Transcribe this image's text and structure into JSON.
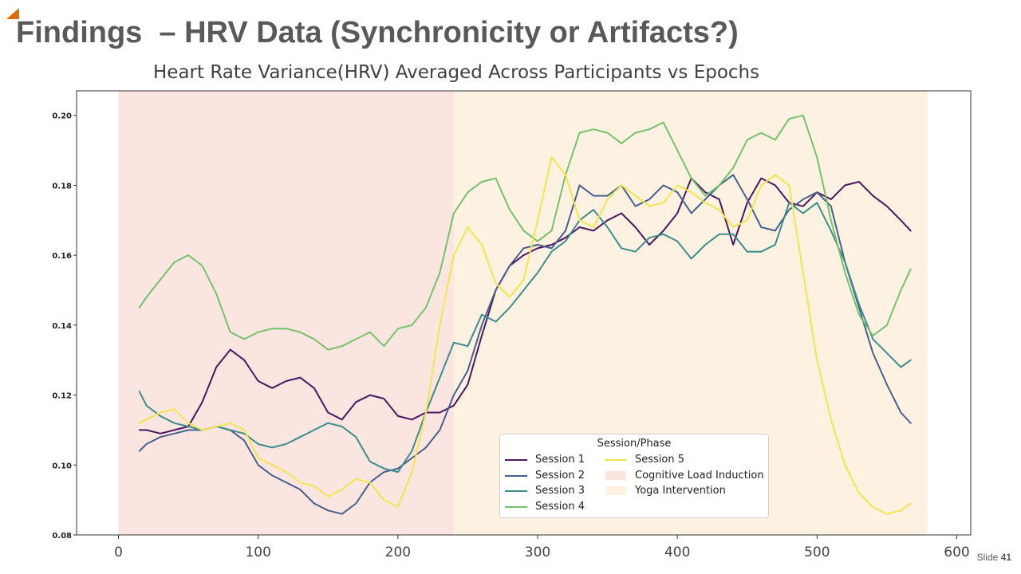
{
  "slide": {
    "title": "Findings  – HRV Data (Synchronicity or Artifacts?)",
    "slide_prefix": "Slide ",
    "slide_number": "41",
    "accent_color": "#e36c09"
  },
  "chart_data": {
    "type": "line",
    "title": "Heart Rate Variance(HRV) Averaged Across Participants vs Epochs",
    "xlabel": "",
    "ylabel": "",
    "xlim": [
      -30,
      610
    ],
    "ylim": [
      0.08,
      0.207
    ],
    "xticks": [
      0,
      100,
      200,
      300,
      400,
      500,
      600
    ],
    "yticks": [
      0.08,
      0.1,
      0.12,
      0.14,
      0.16,
      0.18,
      0.2
    ],
    "ytick_labels": [
      "0.08",
      "0.10",
      "0.12",
      "0.14",
      "0.16",
      "0.18",
      "0.20"
    ],
    "grid": false,
    "legend": {
      "title": "Session/Phase",
      "placement": "lower-right",
      "columns": 2
    },
    "phases": [
      {
        "name": "Cognitive Load Induction",
        "x_start": 0,
        "x_end": 240,
        "color": "#fbe5e1"
      },
      {
        "name": "Yoga Intervention",
        "x_start": 240,
        "x_end": 579,
        "color": "#fdf1e2"
      }
    ],
    "series": [
      {
        "name": "Session 1",
        "color": "#4a1760",
        "x": [
          15,
          20,
          30,
          40,
          50,
          60,
          70,
          80,
          90,
          100,
          110,
          120,
          130,
          140,
          150,
          160,
          170,
          180,
          190,
          200,
          210,
          220,
          230,
          240,
          250,
          260,
          270,
          280,
          290,
          300,
          310,
          320,
          330,
          340,
          350,
          360,
          370,
          380,
          390,
          400,
          410,
          420,
          430,
          440,
          450,
          460,
          470,
          480,
          490,
          500,
          510,
          520,
          530,
          540,
          550,
          560,
          567
        ],
        "y": [
          0.11,
          0.11,
          0.109,
          0.11,
          0.111,
          0.118,
          0.128,
          0.133,
          0.13,
          0.124,
          0.122,
          0.124,
          0.125,
          0.122,
          0.115,
          0.113,
          0.118,
          0.12,
          0.119,
          0.114,
          0.113,
          0.115,
          0.115,
          0.117,
          0.123,
          0.137,
          0.15,
          0.157,
          0.16,
          0.162,
          0.163,
          0.165,
          0.168,
          0.167,
          0.17,
          0.172,
          0.168,
          0.163,
          0.167,
          0.172,
          0.182,
          0.178,
          0.176,
          0.163,
          0.175,
          0.182,
          0.18,
          0.175,
          0.174,
          0.178,
          0.176,
          0.18,
          0.181,
          0.177,
          0.174,
          0.17,
          0.167
        ]
      },
      {
        "name": "Session 2",
        "color": "#48608e",
        "x": [
          15,
          20,
          30,
          40,
          50,
          60,
          70,
          80,
          90,
          100,
          110,
          120,
          130,
          140,
          150,
          160,
          170,
          180,
          190,
          200,
          210,
          220,
          230,
          240,
          250,
          260,
          270,
          280,
          290,
          300,
          310,
          320,
          330,
          340,
          350,
          360,
          370,
          380,
          390,
          400,
          410,
          420,
          430,
          440,
          450,
          460,
          470,
          480,
          490,
          500,
          510,
          520,
          530,
          540,
          550,
          560,
          567
        ],
        "y": [
          0.104,
          0.106,
          0.108,
          0.109,
          0.11,
          0.11,
          0.111,
          0.11,
          0.107,
          0.1,
          0.097,
          0.095,
          0.093,
          0.089,
          0.087,
          0.086,
          0.089,
          0.095,
          0.098,
          0.099,
          0.102,
          0.105,
          0.11,
          0.12,
          0.127,
          0.14,
          0.15,
          0.157,
          0.162,
          0.163,
          0.162,
          0.167,
          0.18,
          0.177,
          0.177,
          0.18,
          0.174,
          0.176,
          0.18,
          0.178,
          0.172,
          0.176,
          0.18,
          0.183,
          0.176,
          0.168,
          0.167,
          0.173,
          0.176,
          0.178,
          0.174,
          0.158,
          0.145,
          0.132,
          0.123,
          0.115,
          0.112
        ]
      },
      {
        "name": "Session 3",
        "color": "#3b8e8c",
        "x": [
          15,
          20,
          30,
          40,
          50,
          60,
          70,
          80,
          90,
          100,
          110,
          120,
          130,
          140,
          150,
          160,
          170,
          180,
          190,
          200,
          210,
          220,
          230,
          240,
          250,
          260,
          270,
          280,
          290,
          300,
          310,
          320,
          330,
          340,
          350,
          360,
          370,
          380,
          390,
          400,
          410,
          420,
          430,
          440,
          450,
          460,
          470,
          480,
          490,
          500,
          510,
          520,
          530,
          540,
          550,
          560,
          567
        ],
        "y": [
          0.121,
          0.117,
          0.114,
          0.112,
          0.111,
          0.11,
          0.111,
          0.11,
          0.109,
          0.106,
          0.105,
          0.106,
          0.108,
          0.11,
          0.112,
          0.111,
          0.108,
          0.101,
          0.099,
          0.098,
          0.104,
          0.115,
          0.125,
          0.135,
          0.134,
          0.143,
          0.141,
          0.145,
          0.15,
          0.155,
          0.161,
          0.164,
          0.17,
          0.173,
          0.168,
          0.162,
          0.161,
          0.165,
          0.166,
          0.164,
          0.159,
          0.163,
          0.166,
          0.166,
          0.161,
          0.161,
          0.163,
          0.175,
          0.172,
          0.175,
          0.167,
          0.158,
          0.146,
          0.136,
          0.132,
          0.128,
          0.13
        ]
      },
      {
        "name": "Session 4",
        "color": "#74c36c",
        "x": [
          15,
          20,
          30,
          40,
          50,
          60,
          70,
          80,
          90,
          100,
          110,
          120,
          130,
          140,
          150,
          160,
          170,
          180,
          190,
          200,
          210,
          220,
          230,
          240,
          250,
          260,
          270,
          280,
          290,
          300,
          310,
          320,
          330,
          340,
          350,
          360,
          370,
          380,
          390,
          400,
          410,
          420,
          430,
          440,
          450,
          460,
          470,
          480,
          490,
          500,
          510,
          520,
          530,
          540,
          550,
          560,
          567
        ],
        "y": [
          0.145,
          0.148,
          0.153,
          0.158,
          0.16,
          0.157,
          0.149,
          0.138,
          0.136,
          0.138,
          0.139,
          0.139,
          0.138,
          0.136,
          0.133,
          0.134,
          0.136,
          0.138,
          0.134,
          0.139,
          0.14,
          0.145,
          0.155,
          0.172,
          0.178,
          0.181,
          0.182,
          0.173,
          0.167,
          0.164,
          0.167,
          0.183,
          0.195,
          0.196,
          0.195,
          0.192,
          0.195,
          0.196,
          0.198,
          0.19,
          0.182,
          0.177,
          0.18,
          0.185,
          0.193,
          0.195,
          0.193,
          0.199,
          0.2,
          0.188,
          0.17,
          0.155,
          0.143,
          0.137,
          0.14,
          0.15,
          0.156
        ]
      },
      {
        "name": "Session 5",
        "color": "#f2e64c",
        "x": [
          15,
          20,
          30,
          40,
          50,
          60,
          70,
          80,
          90,
          100,
          110,
          120,
          130,
          140,
          150,
          160,
          170,
          180,
          190,
          200,
          210,
          220,
          230,
          240,
          250,
          260,
          270,
          280,
          290,
          300,
          310,
          320,
          330,
          340,
          350,
          360,
          370,
          380,
          390,
          400,
          410,
          420,
          430,
          440,
          450,
          460,
          470,
          480,
          490,
          500,
          510,
          520,
          530,
          540,
          550,
          560,
          567
        ],
        "y": [
          0.112,
          0.113,
          0.115,
          0.116,
          0.112,
          0.11,
          0.111,
          0.112,
          0.11,
          0.102,
          0.1,
          0.098,
          0.095,
          0.094,
          0.091,
          0.093,
          0.096,
          0.095,
          0.09,
          0.088,
          0.098,
          0.115,
          0.14,
          0.16,
          0.168,
          0.163,
          0.152,
          0.148,
          0.153,
          0.17,
          0.188,
          0.183,
          0.17,
          0.168,
          0.176,
          0.18,
          0.177,
          0.174,
          0.175,
          0.18,
          0.178,
          0.175,
          0.173,
          0.168,
          0.17,
          0.18,
          0.183,
          0.18,
          0.155,
          0.13,
          0.113,
          0.1,
          0.092,
          0.088,
          0.086,
          0.087,
          0.089
        ]
      }
    ]
  }
}
